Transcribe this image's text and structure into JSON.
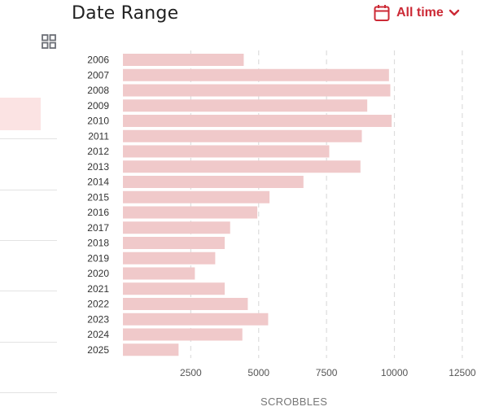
{
  "header": {
    "title": "Date Range",
    "range_label": "All time"
  },
  "icons": {
    "view_toggle": "grid-icon",
    "calendar": "calendar-icon",
    "dropdown": "chevron-down-icon"
  },
  "colors": {
    "accent": "#cc2a36",
    "bar": "#f0c9ca",
    "selected_row": "#fbe3e3",
    "gridline": "#dddddd"
  },
  "chart_data": {
    "type": "bar",
    "orientation": "horizontal",
    "categories": [
      "2006",
      "2007",
      "2008",
      "2009",
      "2010",
      "2011",
      "2012",
      "2013",
      "2014",
      "2015",
      "2016",
      "2017",
      "2018",
      "2019",
      "2020",
      "2021",
      "2022",
      "2023",
      "2024",
      "2025"
    ],
    "values": [
      4450,
      9800,
      9850,
      9000,
      9900,
      8800,
      7600,
      8750,
      6650,
      5400,
      4950,
      3950,
      3750,
      3400,
      2650,
      3750,
      4600,
      5350,
      4400,
      2050
    ],
    "xlabel": "SCROBBLES",
    "ylabel": "",
    "xlim": [
      0,
      12500
    ],
    "xticks": [
      2500,
      5000,
      7500,
      10000,
      12500
    ],
    "grid": true
  }
}
